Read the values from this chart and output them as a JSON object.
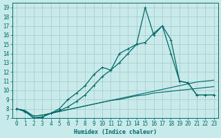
{
  "xlabel": "Humidex (Indice chaleur)",
  "background_color": "#c8eaea",
  "grid_color": "#a0c8c8",
  "line_color": "#006868",
  "xlim": [
    -0.5,
    23.5
  ],
  "ylim": [
    7,
    19.5
  ],
  "xticks": [
    0,
    1,
    2,
    3,
    4,
    5,
    6,
    7,
    8,
    9,
    10,
    11,
    12,
    13,
    14,
    15,
    16,
    17,
    18,
    19,
    20,
    21,
    22,
    23
  ],
  "yticks": [
    7,
    8,
    9,
    10,
    11,
    12,
    13,
    14,
    15,
    16,
    17,
    18,
    19
  ],
  "line1_x": [
    0,
    1,
    2,
    3,
    4,
    5,
    6,
    7,
    8,
    9,
    10,
    11,
    12,
    13,
    14,
    15,
    16,
    17,
    18,
    19,
    20,
    21,
    22,
    23
  ],
  "line1_y": [
    8.0,
    7.7,
    7.0,
    7.1,
    7.5,
    8.0,
    9.0,
    9.7,
    10.5,
    11.7,
    12.5,
    12.2,
    14.0,
    14.5,
    15.0,
    19.0,
    16.0,
    17.0,
    15.5,
    11.0,
    10.8,
    9.5,
    9.5,
    9.5
  ],
  "line2_x": [
    0,
    1,
    2,
    3,
    4,
    5,
    6,
    7,
    8,
    9,
    10,
    11,
    12,
    13,
    14,
    15,
    16,
    17,
    18,
    19,
    20,
    21,
    22,
    23
  ],
  "line2_y": [
    8.0,
    7.7,
    7.0,
    7.1,
    7.5,
    7.8,
    8.2,
    8.8,
    9.5,
    10.5,
    11.5,
    12.2,
    13.0,
    14.0,
    15.0,
    15.2,
    16.2,
    17.0,
    14.0,
    11.0,
    10.8,
    9.5,
    9.5,
    9.5
  ],
  "line3_x": [
    0,
    1,
    2,
    3,
    4,
    5,
    6,
    7,
    8,
    9,
    10,
    11,
    12,
    13,
    14,
    15,
    16,
    17,
    18,
    19,
    20,
    21,
    22,
    23
  ],
  "line3_y": [
    8.0,
    7.8,
    7.2,
    7.3,
    7.5,
    7.7,
    7.9,
    8.1,
    8.3,
    8.5,
    8.7,
    8.9,
    9.1,
    9.3,
    9.5,
    9.7,
    9.9,
    10.1,
    10.3,
    10.5,
    10.7,
    10.9,
    11.0,
    11.1
  ],
  "line4_x": [
    0,
    1,
    2,
    3,
    4,
    5,
    6,
    7,
    8,
    9,
    10,
    11,
    12,
    13,
    14,
    15,
    16,
    17,
    18,
    19,
    20,
    21,
    22,
    23
  ],
  "line4_y": [
    8.0,
    7.8,
    7.2,
    7.3,
    7.5,
    7.7,
    7.9,
    8.1,
    8.3,
    8.5,
    8.7,
    8.9,
    9.0,
    9.2,
    9.4,
    9.5,
    9.7,
    9.8,
    9.9,
    10.0,
    10.1,
    10.2,
    10.3,
    10.4
  ],
  "fontsize_label": 6,
  "fontsize_tick": 5.5
}
